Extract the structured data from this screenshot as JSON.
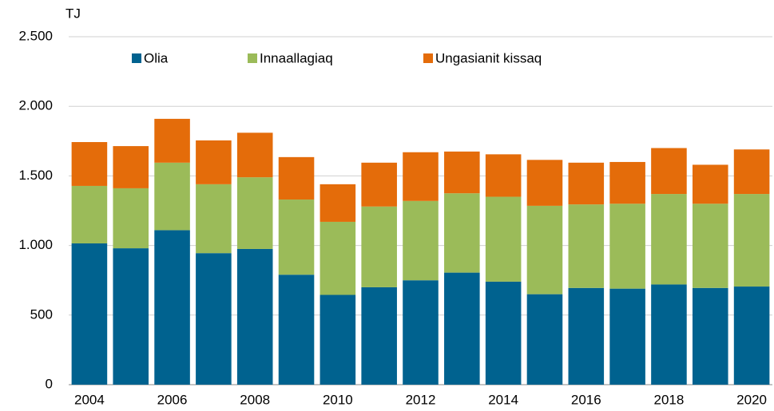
{
  "chart_data": {
    "type": "stacked_bar",
    "y_axis_label": "TJ",
    "categories": [
      "2004",
      null,
      "2006",
      null,
      "2008",
      null,
      "2010",
      null,
      "2012",
      null,
      "2014",
      null,
      "2016",
      null,
      "2018",
      null,
      "2020"
    ],
    "series": [
      {
        "name": "Olia",
        "color": "#00628f",
        "values": [
          1015,
          980,
          1110,
          945,
          975,
          790,
          645,
          700,
          750,
          805,
          740,
          650,
          695,
          690,
          720,
          695,
          705
        ]
      },
      {
        "name": "Innaallagiaq",
        "color": "#9bbb59",
        "values": [
          413,
          431,
          485,
          495,
          515,
          540,
          525,
          580,
          570,
          570,
          610,
          635,
          600,
          610,
          650,
          605,
          665
        ]
      },
      {
        "name": "Ungasianit kissaq",
        "color": "#e46c0a",
        "values": [
          315,
          303,
          315,
          315,
          320,
          305,
          270,
          315,
          350,
          300,
          305,
          330,
          300,
          300,
          330,
          280,
          320
        ]
      }
    ],
    "ylim": [
      0,
      2500
    ],
    "yticks": [
      0,
      500,
      {
        "value": 1000,
        "label": "1.000"
      },
      {
        "value": 1500,
        "label": "1.500"
      },
      {
        "value": 2000,
        "label": "2.000"
      },
      {
        "value": 2500,
        "label": "2.500"
      }
    ],
    "grid": true,
    "legend": "top"
  }
}
